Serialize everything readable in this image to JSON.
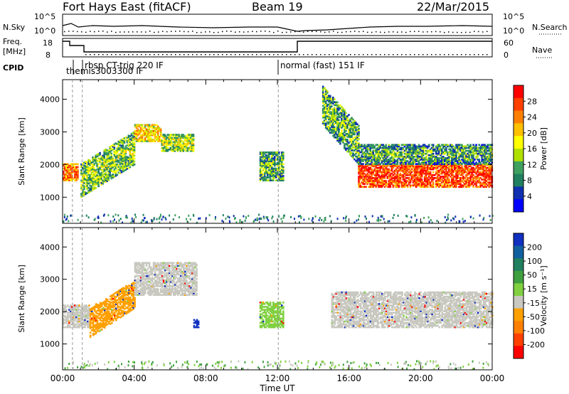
{
  "header": {
    "station": "Fort Hays East (fitACF)",
    "beam": "Beam 19",
    "date": "22/Mar/2015"
  },
  "top_panels": {
    "nsky_label": "N.Sky",
    "nsky_ticks": [
      "10^5",
      "10^0"
    ],
    "nsearch_label": "N.Search",
    "freq_label_1": "Freq.",
    "freq_label_2": "[MHz]",
    "freq_ticks": [
      "18",
      "8"
    ],
    "nave_label": "Nave",
    "nave_ticks": [
      "60",
      "0"
    ],
    "cpid_label": "CPID",
    "cpid_entries": [
      {
        "text": "rbsp CT-trig 220 IF",
        "time": 0.9
      },
      {
        "text": "themis3003300 IF",
        "time": 0.1
      },
      {
        "text": "normal (fast) 151 IF",
        "time": 12.05
      }
    ]
  },
  "chart_data": [
    {
      "type": "heatmap",
      "name": "power",
      "xlabel": "Time UT",
      "ylabel": "Slant Range [km]",
      "xlim": [
        0,
        24
      ],
      "ylim": [
        200,
        4600
      ],
      "yticks": [
        "1000",
        "2000",
        "3000",
        "4000"
      ],
      "xticks": [
        "00:00",
        "04:00",
        "08:00",
        "12:00",
        "16:00",
        "20:00",
        "00:00"
      ],
      "colorbar": {
        "label": "Power [dB]",
        "ticks": [
          "28",
          "24",
          "20",
          "16",
          "12",
          "8",
          "4"
        ],
        "colors": [
          "#ff0000",
          "#ff4000",
          "#ff8000",
          "#ffc000",
          "#ffff00",
          "#b0e000",
          "#40a060",
          "#208060",
          "#1030b0",
          "#0000ff"
        ]
      },
      "regions": [
        {
          "t0": 0.0,
          "t1": 0.8,
          "r0": 1500,
          "r1": 2000,
          "level": 0.7
        },
        {
          "t0": 1.0,
          "t1": 4.0,
          "r0": 1000,
          "r1": 3000,
          "level": 0.35,
          "trend": "rising"
        },
        {
          "t0": 4.0,
          "t1": 5.5,
          "r0": 2700,
          "r1": 3200,
          "level": 0.55
        },
        {
          "t0": 5.5,
          "t1": 7.3,
          "r0": 2400,
          "r1": 2900,
          "level": 0.4
        },
        {
          "t0": 11.0,
          "t1": 12.3,
          "r0": 1500,
          "r1": 2400,
          "level": 0.3
        },
        {
          "t0": 14.5,
          "t1": 16.5,
          "r0": 2000,
          "r1": 4400,
          "level": 0.3,
          "trend": "falling"
        },
        {
          "t0": 16.5,
          "t1": 24.0,
          "r0": 1300,
          "r1": 2000,
          "level": 0.8
        },
        {
          "t0": 16.5,
          "t1": 24.0,
          "r0": 2000,
          "r1": 2600,
          "level": 0.25
        }
      ]
    },
    {
      "type": "heatmap",
      "name": "velocity",
      "xlabel": "Time UT",
      "ylabel": "Slant Range [km]",
      "xlim": [
        0,
        24
      ],
      "ylim": [
        200,
        4600
      ],
      "yticks": [
        "1000",
        "2000",
        "3000",
        "4000"
      ],
      "xticks": [
        "00:00",
        "04:00",
        "08:00",
        "12:00",
        "16:00",
        "20:00",
        "00:00"
      ],
      "colorbar": {
        "label": "Velocity [m s⁻¹]",
        "ticks": [
          "200",
          "100",
          "50",
          "15",
          "-15",
          "-50",
          "-100",
          "-200"
        ],
        "colors": [
          "#1030c0",
          "#1060a0",
          "#208060",
          "#40a040",
          "#80d040",
          "#c8c8c0",
          "#ffa000",
          "#ff8000",
          "#ff4000",
          "#ff0000"
        ]
      },
      "regions": [
        {
          "t0": 0.0,
          "t1": 1.5,
          "r0": 1500,
          "r1": 2200,
          "color": "gray"
        },
        {
          "t0": 1.5,
          "t1": 4.0,
          "r0": 1200,
          "r1": 3000,
          "color": "orange",
          "trend": "rising"
        },
        {
          "t0": 4.0,
          "t1": 7.5,
          "r0": 2500,
          "r1": 3500,
          "color": "gray"
        },
        {
          "t0": 7.3,
          "t1": 7.6,
          "r0": 1500,
          "r1": 1750,
          "color": "blue"
        },
        {
          "t0": 11.0,
          "t1": 12.3,
          "r0": 1500,
          "r1": 2300,
          "color": "green"
        },
        {
          "t0": 15.0,
          "t1": 24.0,
          "r0": 1500,
          "r1": 2600,
          "color": "gray"
        }
      ]
    }
  ]
}
